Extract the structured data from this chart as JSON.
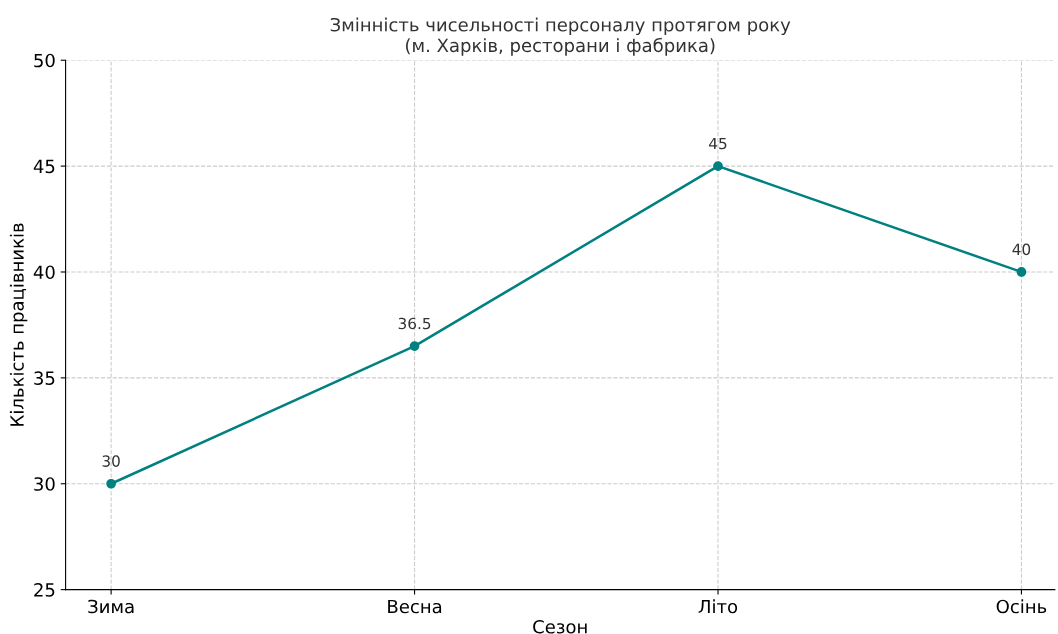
{
  "chart_data": {
    "type": "line",
    "title": "Змінність чисельності персоналу протягом року\n(м. Харків, ресторани і фабрика)",
    "xlabel": "Сезон",
    "ylabel": "Кількість працівників",
    "categories": [
      "Зима",
      "Весна",
      "Літо",
      "Осінь"
    ],
    "series": [
      {
        "color": "#008080",
        "values": [
          30,
          36.5,
          45,
          40
        ]
      }
    ],
    "ylim": [
      25,
      50
    ],
    "yticks": [
      25,
      30,
      35,
      40,
      45,
      50
    ],
    "grid": true,
    "marker": "circle",
    "line_style": "solid",
    "data_labels": true
  }
}
